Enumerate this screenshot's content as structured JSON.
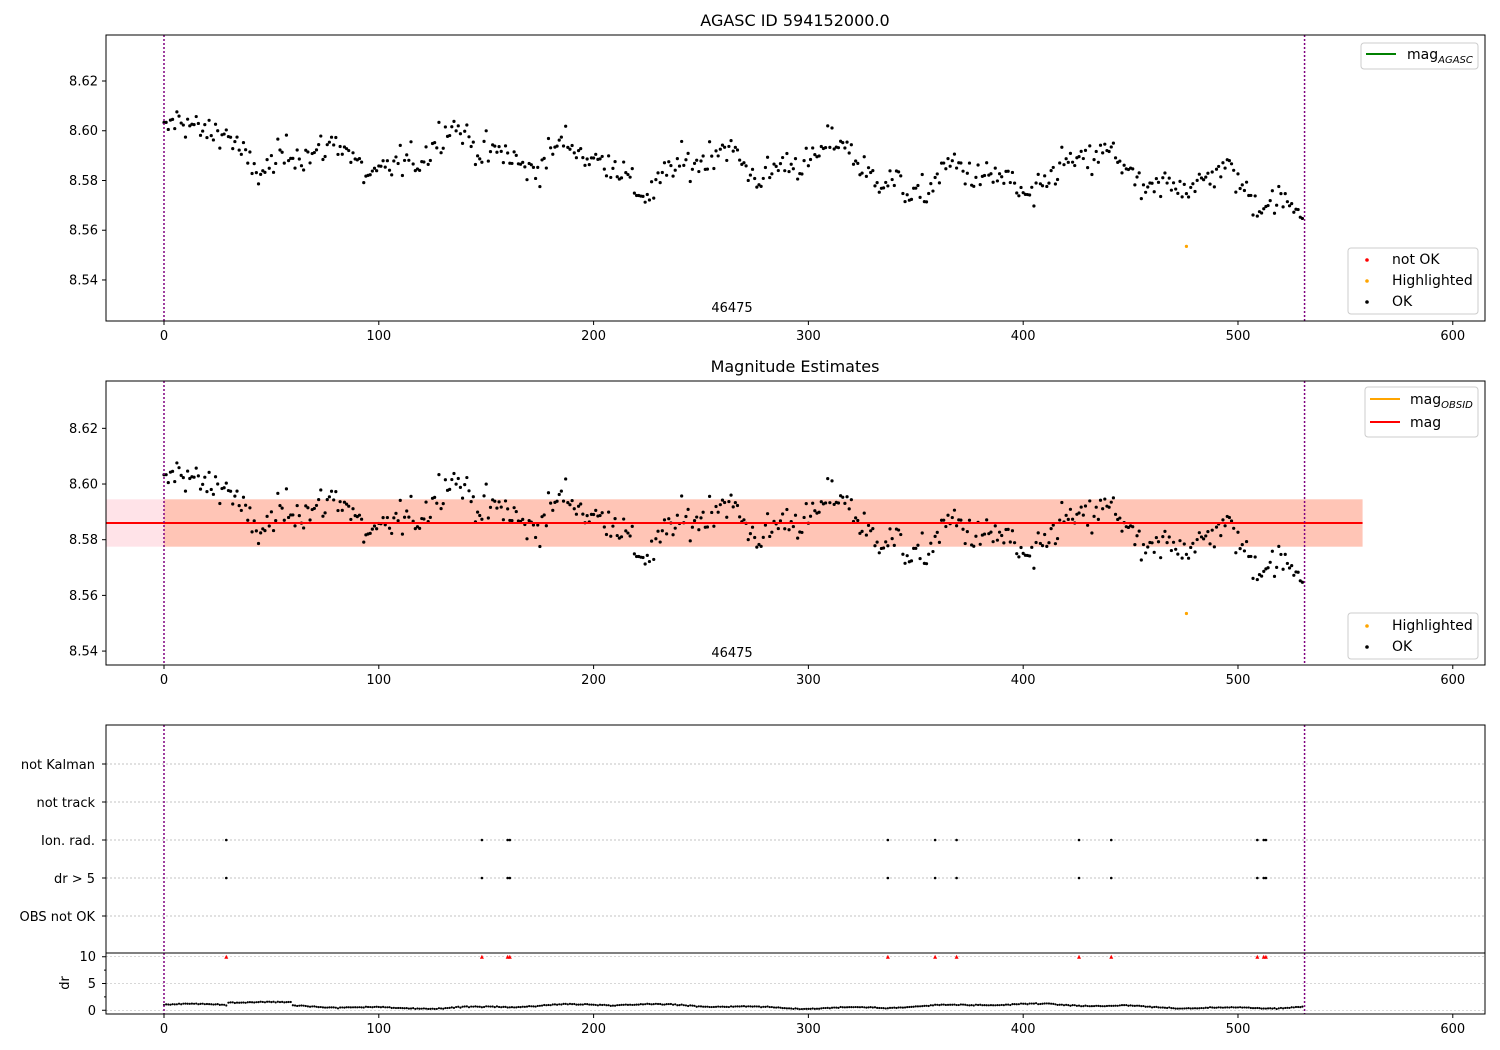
{
  "colors": {
    "ok": "#000000",
    "not_ok": "#ff0000",
    "highlighted": "#ffa500",
    "mag_agasc": "#008000",
    "mag_obsid": "#ffa500",
    "mag": "#ff0000",
    "band_outer": "#ffc0cb",
    "band_inner": "#ffa07a",
    "obs_boundary": "#800080",
    "grid": "#b0b0b0"
  },
  "panel1": {
    "title": "AGASC ID 594152000.0",
    "annotation": "46475",
    "legend_line_label": "mag",
    "legend_line_sub": "AGASC",
    "legend_points": [
      "not OK",
      "Highlighted",
      "OK"
    ]
  },
  "panel2": {
    "title": "Magnitude Estimates",
    "annotation": "46475",
    "legend_line_1": "mag",
    "legend_line_1_sub": "OBSID",
    "legend_line_2": "mag",
    "legend_points": [
      "Highlighted",
      "OK"
    ]
  },
  "panel3": {
    "flag_labels": [
      "not Kalman",
      "not track",
      "Ion. rad.",
      "dr > 5",
      "OBS not OK"
    ]
  },
  "panel4": {
    "ylabel": "dr"
  },
  "chart_data": [
    {
      "type": "scatter",
      "title": "AGASC ID 594152000.0",
      "xlabel": "",
      "ylabel": "",
      "xlim": [
        -27,
        615
      ],
      "ylim": [
        8.5235,
        8.6385
      ],
      "xticks": [
        0,
        100,
        200,
        300,
        400,
        500,
        600
      ],
      "yticks": [
        8.54,
        8.56,
        8.58,
        8.6,
        8.62
      ],
      "obs_boundaries": [
        0,
        531
      ],
      "annotation": {
        "text": "46475",
        "x": 265
      },
      "legend": [
        "mag AGASC",
        "not OK",
        "Highlighted",
        "OK"
      ],
      "series": [
        {
          "name": "OK",
          "description": "~531 black points, mag fluctuating between ~8.563 and ~8.608, generally declining slowly from ~8.595 to ~8.575",
          "n": 531,
          "ymin": 8.563,
          "ymax": 8.608
        },
        {
          "name": "Highlighted",
          "points": [
            [
              476,
              8.5535
            ]
          ]
        },
        {
          "name": "not OK",
          "points": []
        }
      ]
    },
    {
      "type": "scatter",
      "title": "Magnitude Estimates",
      "xlim": [
        -27,
        615
      ],
      "ylim": [
        8.535,
        8.637
      ],
      "xticks": [
        0,
        100,
        200,
        300,
        400,
        500,
        600
      ],
      "yticks": [
        8.54,
        8.56,
        8.58,
        8.6,
        8.62
      ],
      "obs_boundaries": [
        0,
        531
      ],
      "annotation": {
        "text": "46475",
        "x": 265
      },
      "mag": 8.586,
      "mag_std": 0.0085,
      "mag_obsid": 8.586,
      "band_x": [
        -27,
        558
      ],
      "legend": [
        "mag OBSID",
        "mag",
        "Highlighted",
        "OK"
      ],
      "series": [
        {
          "name": "OK",
          "n": 531,
          "ymin": 8.563,
          "ymax": 8.608
        },
        {
          "name": "Highlighted",
          "points": [
            [
              476,
              8.5535
            ]
          ]
        }
      ]
    },
    {
      "type": "scatter",
      "title": "",
      "xlim": [
        -27,
        615
      ],
      "categories": [
        "not Kalman",
        "not track",
        "Ion. rad.",
        "dr > 5",
        "OBS not OK"
      ],
      "obs_boundaries": [
        0,
        531
      ],
      "flags": {
        "Ion. rad.": [
          29,
          148,
          160,
          161,
          337,
          359,
          369,
          426,
          441,
          509,
          512,
          513
        ],
        "dr > 5": [
          29,
          148,
          160,
          161,
          337,
          359,
          369,
          426,
          441,
          509,
          512,
          513
        ]
      }
    },
    {
      "type": "scatter",
      "title": "",
      "ylabel": "dr",
      "xlim": [
        -27,
        615
      ],
      "ylim": [
        -0.7,
        10.7
      ],
      "yticks": [
        0,
        5,
        10
      ],
      "xticks": [
        0,
        100,
        200,
        300,
        400,
        500,
        600
      ],
      "obs_boundaries": [
        0,
        531
      ],
      "dr_typical_range": [
        0.1,
        1.5
      ],
      "outliers_clipped_at": 10,
      "outlier_x": [
        29,
        148,
        160,
        161,
        337,
        359,
        369,
        426,
        441,
        509,
        512,
        513
      ]
    }
  ]
}
